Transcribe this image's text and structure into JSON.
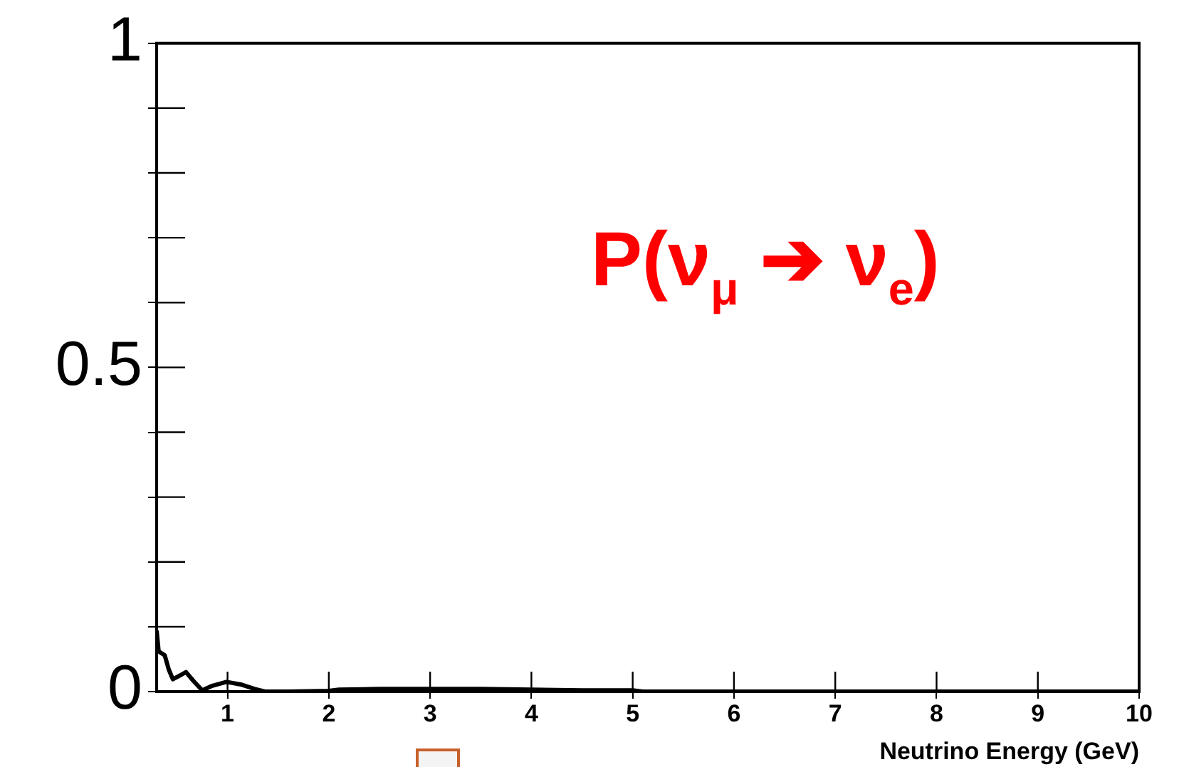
{
  "chart_data": {
    "type": "line",
    "xlabel": "Neutrino Energy (GeV)",
    "annotations": [
      "P(ν$_{μ}$ ➔ ν$_{e}$)"
    ],
    "x": [
      0.3,
      0.32,
      0.38,
      0.42,
      0.46,
      0.52,
      0.59,
      0.66,
      0.75,
      0.85,
      0.99,
      1.13,
      1.27,
      1.37,
      1.6,
      2.0,
      2.1,
      2.5,
      3.0,
      3.5,
      4.0,
      4.5,
      5.0,
      5.1,
      6,
      7,
      7.6,
      8,
      9,
      10
    ],
    "series": [
      {
        "color": "#000000",
        "values": [
          0.094,
          0.062,
          0.056,
          0.034,
          0.019,
          0.024,
          0.03,
          0.017,
          0.002,
          0.009,
          0.015,
          0.011,
          0.004,
          0.0,
          0.0,
          0.001,
          0.003,
          0.004,
          0.004,
          0.004,
          0.003,
          0.002,
          0.002,
          0.0,
          0.0,
          0.0,
          0.0,
          0.0,
          0.0,
          0.0
        ]
      }
    ],
    "xlim": [
      0.3,
      10
    ],
    "xticks": [
      1,
      2,
      3,
      4,
      5,
      6,
      7,
      8,
      9,
      10
    ],
    "ylim": [
      0,
      1
    ],
    "yticks": [
      0,
      {
        "value": 0.1,
        "label": null
      },
      {
        "value": 0.2,
        "label": null
      },
      {
        "value": 0.3,
        "label": null
      },
      {
        "value": 0.4,
        "label": null
      },
      0.5,
      {
        "value": 0.6,
        "label": null
      },
      {
        "value": 0.7,
        "label": null
      },
      {
        "value": 0.8,
        "label": null
      },
      {
        "value": 0.9,
        "label": null
      },
      1
    ],
    "grid": false,
    "legend": false,
    "marker": "none",
    "line_style": "solid"
  }
}
